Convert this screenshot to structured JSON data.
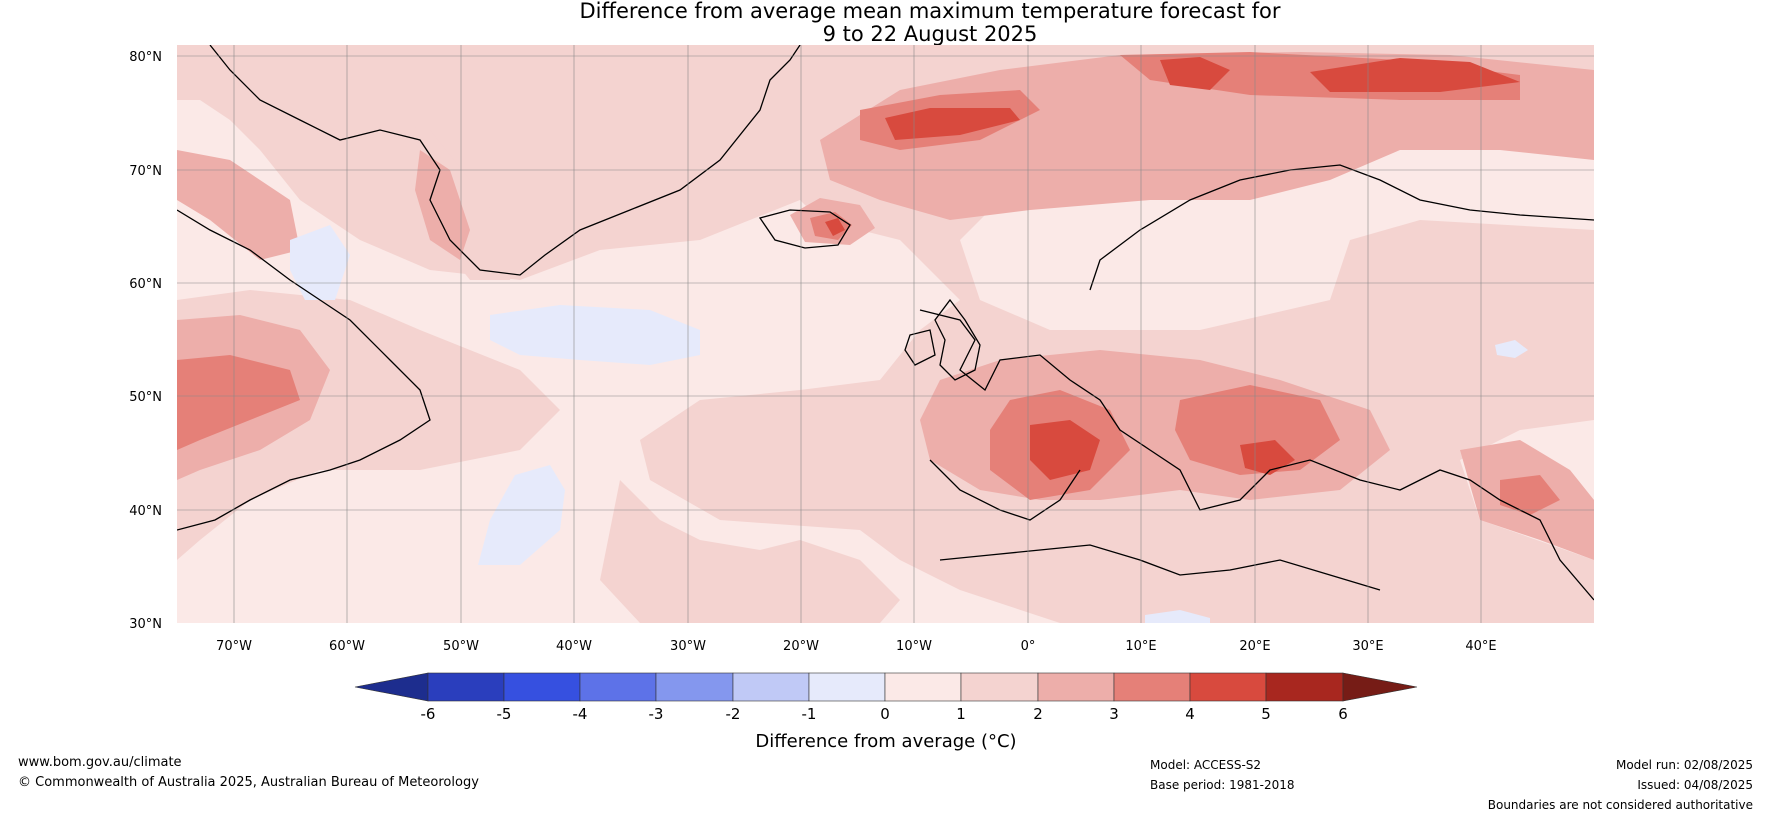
{
  "title": {
    "line1": "Difference from average mean maximum temperature forecast for",
    "line2": "9 to 22 August 2025"
  },
  "map": {
    "lat_labels": [
      "80°N",
      "70°N",
      "60°N",
      "50°N",
      "40°N",
      "30°N"
    ],
    "lon_labels": [
      "70°W",
      "60°W",
      "50°W",
      "40°W",
      "30°W",
      "20°W",
      "10°W",
      "0°",
      "10°E",
      "20°E",
      "30°E",
      "40°E"
    ],
    "lat_range": [
      30,
      81
    ],
    "lon_range": [
      -75,
      50
    ]
  },
  "colorbar": {
    "ticks": [
      "-6",
      "-5",
      "-4",
      "-3",
      "-2",
      "-1",
      "0",
      "1",
      "2",
      "3",
      "4",
      "5",
      "6"
    ],
    "label": "Difference from average (°C)",
    "colors": [
      "#1d2d8e",
      "#2a3ebd",
      "#3650e0",
      "#5d72e8",
      "#8497ee",
      "#c0c9f6",
      "#e6eafb",
      "#fbe9e7",
      "#f4d3d0",
      "#edaeaa",
      "#e58078",
      "#d84a3e",
      "#a8271f",
      "#761c16"
    ]
  },
  "footer": {
    "website": "www.bom.gov.au/climate",
    "copyright": "© Commonwealth of Australia 2025, Australian Bureau of Meteorology",
    "model": "Model: ACCESS-S2",
    "base_period": "Base period: 1981-2018",
    "model_run": "Model run: 02/08/2025",
    "issued": "Issued: 04/08/2025",
    "disclaimer": "Boundaries are not considered authoritative"
  }
}
